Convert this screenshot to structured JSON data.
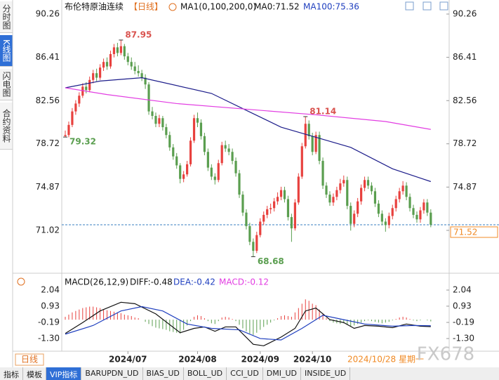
{
  "sidebar": [
    "分时图",
    "K线图",
    "闪电图",
    "合约资料"
  ],
  "header": {
    "title": "布伦特原油连续",
    "period": "【日线】",
    "legend": [
      "MA1(0,100,200,0)",
      "MA0:71.52",
      "MA100:75.36"
    ]
  },
  "macd_header": [
    "MACD(26,12,9)",
    "DIFF:-0.48",
    "DEA:-0.42",
    "MACD:-0.12"
  ],
  "footer": {
    "period": "日线",
    "date": "2024/10/28 星期一",
    "watermark": "FX678"
  },
  "tabs": [
    "指标",
    "模板",
    "VIP指标",
    "BARUPDN_UD",
    "BIAS_UD",
    "BOLL_UD",
    "CCI_UD",
    "DMI_UD",
    "INSIDE_UD"
  ],
  "chart_data": [
    {
      "type": "candlestick",
      "ylim": [
        67.27,
        91.01
      ],
      "yticks": [
        90.26,
        86.41,
        82.56,
        78.72,
        74.87,
        71.02
      ],
      "xticks": [
        {
          "value": 18,
          "label": "2024/07"
        },
        {
          "value": 38,
          "label": "2024/08"
        },
        {
          "value": 56,
          "label": "2024/09"
        },
        {
          "value": 71,
          "label": "2024/10"
        }
      ],
      "up_color": "#e8413e",
      "down_color": "#5a9e4f",
      "last_price": 71.52,
      "annotations": [
        {
          "x": 16,
          "value": 87.95,
          "color": "#d9534f"
        },
        {
          "x": 0,
          "value": 79.32,
          "color": "#5a9e4f"
        },
        {
          "x": 69,
          "value": 81.14,
          "color": "#d9534f"
        },
        {
          "x": 54,
          "value": 68.68,
          "color": "#5a9e4f"
        }
      ],
      "candles": [
        [
          79.4,
          79.9,
          79.32,
          79.5
        ],
        [
          79.5,
          80.7,
          79.3,
          80.4
        ],
        [
          80.4,
          81.9,
          80.2,
          81.6
        ],
        [
          81.6,
          82.6,
          81.3,
          82.3
        ],
        [
          82.3,
          83.3,
          82.0,
          83.0
        ],
        [
          83.0,
          84.1,
          82.8,
          83.8
        ],
        [
          83.8,
          84.2,
          83.2,
          83.5
        ],
        [
          83.5,
          84.7,
          83.3,
          84.4
        ],
        [
          84.4,
          85.3,
          84.1,
          85.0
        ],
        [
          85.0,
          85.4,
          84.3,
          84.6
        ],
        [
          84.6,
          85.8,
          84.4,
          85.5
        ],
        [
          85.5,
          86.3,
          85.2,
          86.0
        ],
        [
          86.0,
          86.4,
          85.3,
          85.6
        ],
        [
          85.6,
          87.0,
          85.4,
          86.7
        ],
        [
          86.7,
          87.6,
          86.4,
          87.3
        ],
        [
          87.3,
          87.7,
          86.5,
          86.8
        ],
        [
          86.8,
          87.95,
          86.6,
          87.4
        ],
        [
          87.4,
          87.6,
          86.2,
          86.5
        ],
        [
          86.5,
          86.8,
          85.7,
          86.0
        ],
        [
          86.0,
          86.4,
          85.3,
          85.6
        ],
        [
          85.6,
          86.0,
          84.9,
          85.2
        ],
        [
          85.2,
          85.7,
          84.7,
          85.0
        ],
        [
          85.0,
          85.3,
          84.3,
          84.6
        ],
        [
          84.6,
          84.9,
          83.6,
          84.0
        ],
        [
          84.0,
          84.2,
          81.3,
          81.6
        ],
        [
          81.6,
          82.0,
          80.9,
          81.2
        ],
        [
          81.2,
          81.5,
          80.2,
          80.5
        ],
        [
          80.5,
          81.3,
          80.2,
          81.0
        ],
        [
          81.0,
          81.2,
          79.9,
          80.2
        ],
        [
          80.2,
          80.5,
          79.2,
          79.5
        ],
        [
          79.5,
          79.8,
          78.1,
          78.4
        ],
        [
          78.4,
          78.7,
          77.3,
          77.6
        ],
        [
          77.6,
          77.9,
          76.5,
          76.8
        ],
        [
          76.8,
          77.0,
          75.2,
          75.6
        ],
        [
          75.6,
          76.3,
          75.3,
          76.0
        ],
        [
          76.0,
          77.2,
          75.8,
          76.9
        ],
        [
          76.9,
          79.3,
          76.7,
          79.0
        ],
        [
          79.0,
          81.3,
          78.8,
          81.0
        ],
        [
          81.0,
          81.5,
          80.2,
          80.6
        ],
        [
          80.6,
          80.9,
          79.1,
          79.4
        ],
        [
          79.4,
          79.7,
          77.7,
          78.0
        ],
        [
          78.0,
          78.3,
          76.3,
          76.6
        ],
        [
          76.6,
          76.9,
          75.5,
          75.8
        ],
        [
          75.8,
          76.1,
          75.1,
          75.5
        ],
        [
          75.5,
          77.3,
          75.3,
          77.0
        ],
        [
          77.0,
          78.9,
          76.8,
          78.6
        ],
        [
          78.6,
          79.0,
          78.0,
          78.3
        ],
        [
          78.3,
          78.7,
          77.7,
          78.0
        ],
        [
          78.0,
          78.3,
          76.9,
          77.2
        ],
        [
          77.2,
          77.5,
          75.8,
          76.1
        ],
        [
          76.1,
          76.4,
          73.9,
          74.2
        ],
        [
          74.2,
          74.5,
          72.3,
          72.6
        ],
        [
          72.6,
          72.9,
          71.1,
          71.4
        ],
        [
          71.4,
          71.7,
          69.7,
          70.0
        ],
        [
          70.0,
          70.3,
          68.68,
          69.2
        ],
        [
          69.2,
          70.9,
          69.0,
          70.6
        ],
        [
          70.6,
          72.1,
          70.4,
          71.8
        ],
        [
          71.8,
          72.7,
          71.5,
          72.4
        ],
        [
          72.4,
          73.2,
          72.1,
          72.9
        ],
        [
          72.9,
          73.4,
          72.5,
          73.0
        ],
        [
          73.0,
          73.9,
          72.7,
          73.6
        ],
        [
          73.6,
          74.4,
          73.3,
          74.0
        ],
        [
          74.0,
          74.9,
          73.7,
          74.6
        ],
        [
          74.6,
          74.9,
          73.5,
          73.8
        ],
        [
          73.8,
          74.1,
          71.9,
          72.2
        ],
        [
          72.2,
          72.5,
          70.0,
          71.2
        ],
        [
          71.2,
          73.8,
          71.0,
          73.5
        ],
        [
          73.5,
          76.1,
          73.3,
          75.8
        ],
        [
          75.8,
          78.8,
          75.6,
          78.5
        ],
        [
          78.5,
          81.14,
          78.3,
          80.5
        ],
        [
          80.5,
          80.8,
          79.1,
          79.4
        ],
        [
          79.4,
          79.7,
          77.7,
          78.0
        ],
        [
          78.0,
          79.8,
          77.8,
          79.5
        ],
        [
          79.5,
          79.8,
          76.9,
          77.2
        ],
        [
          77.2,
          77.5,
          74.7,
          75.0
        ],
        [
          75.0,
          75.3,
          73.9,
          74.2
        ],
        [
          74.2,
          74.5,
          73.2,
          73.5
        ],
        [
          73.5,
          74.3,
          73.2,
          74.0
        ],
        [
          74.0,
          74.9,
          73.7,
          74.6
        ],
        [
          74.6,
          75.6,
          74.3,
          75.2
        ],
        [
          75.2,
          75.9,
          74.9,
          75.5
        ],
        [
          75.5,
          75.8,
          72.9,
          73.2
        ],
        [
          73.2,
          73.5,
          71.0,
          71.6
        ],
        [
          71.6,
          72.8,
          71.3,
          72.5
        ],
        [
          72.5,
          73.9,
          72.2,
          73.6
        ],
        [
          73.6,
          75.1,
          73.3,
          74.8
        ],
        [
          74.8,
          75.8,
          74.5,
          75.5
        ],
        [
          75.5,
          75.8,
          74.7,
          75.0
        ],
        [
          75.0,
          75.3,
          74.2,
          74.5
        ],
        [
          74.5,
          74.8,
          73.1,
          73.4
        ],
        [
          73.4,
          73.7,
          72.2,
          72.5
        ],
        [
          72.5,
          72.8,
          71.5,
          71.8
        ],
        [
          71.8,
          72.1,
          70.9,
          71.5
        ],
        [
          71.5,
          72.6,
          71.2,
          72.3
        ],
        [
          72.3,
          73.3,
          72.0,
          73.0
        ],
        [
          73.0,
          74.1,
          72.7,
          73.8
        ],
        [
          73.8,
          74.8,
          73.5,
          74.5
        ],
        [
          74.5,
          75.4,
          74.2,
          75.0
        ],
        [
          75.0,
          75.3,
          73.7,
          74.0
        ],
        [
          74.0,
          74.3,
          72.7,
          73.0
        ],
        [
          73.0,
          73.3,
          72.1,
          72.4
        ],
        [
          72.4,
          72.7,
          71.7,
          72.0
        ],
        [
          72.0,
          73.1,
          71.7,
          72.8
        ],
        [
          72.8,
          73.8,
          72.5,
          73.5
        ],
        [
          73.5,
          73.8,
          72.3,
          72.6
        ],
        [
          72.6,
          72.9,
          71.3,
          71.52
        ]
      ],
      "series": [
        {
          "color": "#1c1c8a",
          "x": [
            0,
            10,
            22,
            42,
            52,
            62,
            72,
            82,
            94,
            105
          ],
          "values": [
            83.7,
            84.3,
            84.6,
            83.2,
            81.7,
            80.2,
            79.3,
            78.4,
            76.5,
            75.36
          ]
        },
        {
          "color": "#e23de2",
          "x": [
            0,
            12,
            32,
            52,
            72,
            92,
            105
          ],
          "values": [
            83.7,
            83.1,
            82.3,
            81.8,
            81.3,
            80.7,
            80.0
          ]
        }
      ]
    },
    {
      "type": "macd",
      "ylim": [
        -1.98,
        2.91
      ],
      "yticks": [
        2.04,
        0.93,
        -0.19,
        {
          "value": -1.3,
          "label": "-1.30"
        }
      ],
      "up_color": "#e8413e",
      "down_color": "#5a9e4f",
      "histogram": [
        0.2,
        0.35,
        0.5,
        0.6,
        0.7,
        0.8,
        0.85,
        0.9,
        0.9,
        0.85,
        0.8,
        0.7,
        0.65,
        0.6,
        0.55,
        0.5,
        0.45,
        0.35,
        0.3,
        0.25,
        0.15,
        0.1,
        0.0,
        -0.15,
        -0.3,
        -0.45,
        -0.55,
        -0.6,
        -0.65,
        -0.7,
        -0.8,
        -0.85,
        -0.9,
        -0.95,
        -0.7,
        -0.4,
        -0.1,
        0.2,
        0.3,
        0.25,
        0.1,
        -0.1,
        -0.25,
        -0.3,
        -0.1,
        0.15,
        0.2,
        0.15,
        0.05,
        -0.1,
        -0.35,
        -0.6,
        -0.8,
        -0.95,
        -1.05,
        -0.9,
        -0.7,
        -0.5,
        -0.35,
        -0.2,
        -0.05,
        0.1,
        0.25,
        0.3,
        0.25,
        0.2,
        0.5,
        0.8,
        1.1,
        1.4,
        1.3,
        1.1,
        1.0,
        0.7,
        0.4,
        0.1,
        -0.1,
        -0.2,
        -0.25,
        -0.3,
        -0.25,
        -0.35,
        -0.45,
        -0.4,
        -0.3,
        -0.2,
        -0.1,
        -0.05,
        -0.1,
        -0.15,
        -0.2,
        -0.25,
        -0.2,
        -0.15,
        -0.05,
        0.05,
        0.15,
        0.2,
        0.15,
        0.05,
        -0.05,
        -0.1,
        -0.05,
        0.0,
        -0.05,
        -0.12
      ],
      "series": [
        {
          "color": "#111111",
          "x": [
            0,
            5,
            10,
            16,
            20,
            26,
            33,
            37,
            40,
            43,
            46,
            49,
            54,
            57,
            62,
            66,
            69,
            72,
            76,
            80,
            83,
            86,
            90,
            94,
            98,
            102,
            105
          ],
          "values": [
            -0.95,
            -0.2,
            0.6,
            1.2,
            1.1,
            0.4,
            -0.9,
            -0.6,
            -0.5,
            -0.8,
            -0.5,
            -0.5,
            -1.7,
            -1.8,
            -1.2,
            -0.6,
            0.6,
            0.8,
            0.0,
            -0.2,
            -0.6,
            -0.4,
            -0.45,
            -0.55,
            -0.3,
            -0.45,
            -0.48
          ]
        },
        {
          "color": "#1f3fbf",
          "x": [
            0,
            8,
            16,
            22,
            28,
            35,
            42,
            50,
            56,
            62,
            68,
            74,
            80,
            86,
            94,
            100,
            105
          ],
          "values": [
            -1.0,
            -0.4,
            0.6,
            0.9,
            0.6,
            -0.3,
            -0.6,
            -0.7,
            -1.3,
            -1.4,
            -0.6,
            0.3,
            0.0,
            -0.3,
            -0.45,
            -0.4,
            -0.42
          ]
        }
      ]
    }
  ]
}
